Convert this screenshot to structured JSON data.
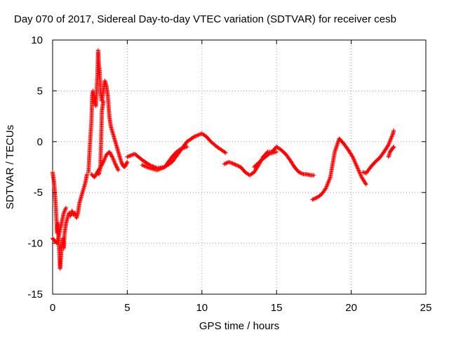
{
  "chart_data": {
    "type": "scatter",
    "title": "Day 070 of 2017, Sidereal Day-to-day VTEC variation (SDTVAR) for receiver cesb",
    "xlabel": "GPS time / hours",
    "ylabel": "SDTVAR / TECUs",
    "xlim": [
      0,
      25
    ],
    "ylim": [
      -15,
      10
    ],
    "xticks": [
      0,
      5,
      10,
      15,
      20,
      25
    ],
    "yticks": [
      -15,
      -10,
      -5,
      0,
      5,
      10
    ],
    "grid": true,
    "marker": "+",
    "series": [
      {
        "name": "SDTVAR",
        "color": "#ff0000",
        "segments": [
          {
            "x": [
              0.0,
              0.1,
              0.2,
              0.25,
              0.3,
              0.35,
              0.4,
              0.45,
              0.5,
              0.55,
              0.6,
              0.65,
              0.7,
              0.75,
              0.8,
              0.9,
              1.0,
              1.1,
              1.2,
              1.3,
              1.4,
              1.5,
              1.6,
              1.7,
              1.8,
              1.9,
              2.0,
              2.1,
              2.2,
              2.3
            ],
            "y": [
              -3.0,
              -4.0,
              -6.0,
              -7.5,
              -9.0,
              -8.0,
              -9.5,
              -11.0,
              -12.5,
              -11.5,
              -10.5,
              -10.0,
              -9.5,
              -10.5,
              -9.0,
              -8.0,
              -7.5,
              -7.0,
              -7.3,
              -6.8,
              -7.2,
              -7.0,
              -7.5,
              -7.0,
              -6.0,
              -5.5,
              -5.0,
              -4.5,
              -4.0,
              -3.2
            ]
          },
          {
            "x": [
              0.0,
              0.15,
              0.3,
              0.45,
              0.6,
              0.75,
              0.9
            ],
            "y": [
              -9.5,
              -9.8,
              -10.0,
              -9.0,
              -8.0,
              -7.0,
              -6.5
            ]
          },
          {
            "x": [
              2.4,
              2.5,
              2.6,
              2.65,
              2.7,
              2.8,
              2.9,
              3.0,
              3.05,
              3.1,
              3.15,
              3.2,
              3.3,
              3.4,
              3.5,
              3.6,
              3.7,
              3.8,
              3.9,
              4.0,
              4.1,
              4.2,
              4.3,
              4.4,
              4.5,
              4.6,
              4.7,
              4.8,
              4.9,
              5.0
            ],
            "y": [
              -3.0,
              -0.3,
              2.0,
              4.5,
              5.0,
              4.0,
              3.5,
              6.5,
              9.0,
              7.5,
              7.0,
              5.0,
              4.0,
              5.0,
              6.0,
              5.5,
              4.5,
              2.5,
              1.5,
              1.0,
              0.5,
              0.0,
              -0.5,
              -1.0,
              -1.5,
              -2.0,
              -2.3,
              -2.5,
              -2.3,
              -2.0
            ]
          },
          {
            "x": [
              3.0,
              3.1,
              3.2,
              3.3,
              3.4
            ],
            "y": [
              -3.0,
              -3.2,
              -2.5,
              3.0,
              4.0
            ]
          },
          {
            "x": [
              2.6,
              2.8,
              3.0,
              3.2,
              3.4,
              3.6,
              3.8,
              4.0,
              4.2,
              4.4
            ],
            "y": [
              -3.2,
              -3.5,
              -3.0,
              -2.5,
              -2.0,
              -1.3,
              -1.0,
              -1.5,
              -2.2,
              -2.8
            ]
          },
          {
            "x": [
              5.0,
              5.5,
              6.0,
              6.5,
              7.0,
              7.5,
              8.0,
              8.5,
              9.0,
              9.5,
              10.0,
              10.3,
              10.6,
              11.0,
              11.3,
              11.6
            ],
            "y": [
              -1.5,
              -1.2,
              -1.8,
              -2.3,
              -2.6,
              -2.5,
              -2.0,
              -1.0,
              0.0,
              0.5,
              0.8,
              0.5,
              0.0,
              -0.5,
              -0.8,
              -1.1
            ]
          },
          {
            "x": [
              6.0,
              6.5,
              7.0,
              7.5,
              8.0,
              8.3,
              8.6,
              9.0
            ],
            "y": [
              -2.3,
              -2.6,
              -2.8,
              -2.5,
              -1.5,
              -1.0,
              -0.7,
              -0.5
            ]
          },
          {
            "x": [
              11.5,
              11.8,
              12.0,
              12.3,
              12.6,
              12.9,
              13.2,
              13.5,
              13.8,
              14.1,
              14.4,
              14.7,
              15.0,
              15.3,
              15.6,
              15.9,
              16.2,
              16.5,
              16.8,
              17.0,
              17.3,
              17.5
            ],
            "y": [
              -2.2,
              -2.0,
              -2.1,
              -2.3,
              -2.5,
              -3.0,
              -3.3,
              -3.0,
              -2.3,
              -1.5,
              -1.0,
              -1.0,
              -0.5,
              -0.8,
              -1.2,
              -1.8,
              -2.5,
              -3.0,
              -3.2,
              -3.2,
              -3.3,
              -3.3
            ]
          },
          {
            "x": [
              13.5,
              14.0,
              14.5,
              15.0
            ],
            "y": [
              -2.5,
              -1.8,
              -1.2,
              -1.0
            ]
          },
          {
            "x": [
              17.4,
              17.7,
              18.0,
              18.3,
              18.6,
              18.9,
              19.2,
              19.5,
              19.8,
              20.1,
              20.4,
              20.7,
              21.0
            ],
            "y": [
              -5.7,
              -5.5,
              -5.2,
              -4.6,
              -3.5,
              -1.0,
              0.3,
              -0.2,
              -0.8,
              -1.5,
              -2.5,
              -3.5,
              -4.2
            ]
          },
          {
            "x": [
              20.8,
              21.0,
              21.3,
              21.6,
              21.9,
              22.2,
              22.5,
              22.8,
              22.85
            ],
            "y": [
              -3.0,
              -3.1,
              -2.5,
              -2.0,
              -1.6,
              -1.0,
              -0.3,
              0.8,
              1.1
            ]
          },
          {
            "x": [
              22.5,
              22.6,
              22.7,
              22.8,
              22.85
            ],
            "y": [
              -1.5,
              -1.0,
              -0.8,
              -0.6,
              -0.5
            ]
          }
        ]
      }
    ]
  }
}
